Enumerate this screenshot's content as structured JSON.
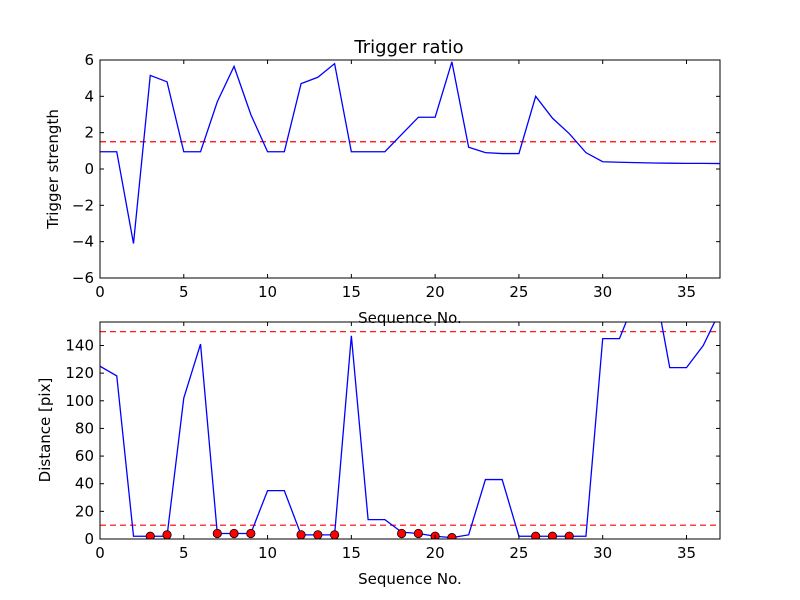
{
  "chart_data": [
    {
      "type": "line",
      "title": "Trigger ratio",
      "xlabel": "Sequence No.",
      "ylabel": "Trigger strength",
      "xlim": [
        0,
        37
      ],
      "ylim": [
        -6,
        6
      ],
      "xticks": [
        "0",
        "5",
        "10",
        "15",
        "20",
        "25",
        "30",
        "35"
      ],
      "yticks": [
        "−6",
        "−4",
        "−2",
        "0",
        "2",
        "4",
        "6"
      ],
      "grid": false,
      "series": [
        {
          "color": "#0000ff",
          "style": "solid",
          "x": [
            0,
            1,
            2,
            3,
            4,
            5,
            6,
            7,
            8,
            9,
            10,
            11,
            12,
            13,
            14,
            15,
            16,
            17,
            18,
            19,
            20,
            21,
            22,
            23,
            24,
            25,
            26,
            27,
            28,
            29,
            30,
            31,
            32,
            33,
            34,
            35,
            36,
            37
          ],
          "y": [
            0.95,
            0.95,
            -4.1,
            5.15,
            4.8,
            0.95,
            0.95,
            3.7,
            5.65,
            3.0,
            0.95,
            0.95,
            4.7,
            5.05,
            5.8,
            0.95,
            0.95,
            0.95,
            1.9,
            2.85,
            2.85,
            5.9,
            1.2,
            0.9,
            0.85,
            0.85,
            4.0,
            2.8,
            1.95,
            0.9,
            0.4,
            0.37,
            0.35,
            0.33,
            0.32,
            0.31,
            0.31,
            0.3
          ]
        }
      ],
      "hlines": [
        {
          "y": 1.5,
          "color": "#ff0000",
          "style": "dashed"
        }
      ]
    },
    {
      "type": "line",
      "title": "",
      "xlabel": "Sequence No.",
      "ylabel": "Distance [pix]",
      "xlim": [
        0,
        37
      ],
      "ylim": [
        0,
        157
      ],
      "xticks": [
        "0",
        "5",
        "10",
        "15",
        "20",
        "25",
        "30",
        "35"
      ],
      "yticks": [
        "0",
        "20",
        "40",
        "60",
        "80",
        "100",
        "120",
        "140"
      ],
      "grid": false,
      "series": [
        {
          "color": "#0000ff",
          "style": "solid",
          "x": [
            0,
            1,
            2,
            3,
            4,
            5,
            6,
            7,
            8,
            9,
            10,
            11,
            12,
            13,
            14,
            15,
            16,
            17,
            18,
            19,
            20,
            21,
            22,
            23,
            24,
            25,
            26,
            27,
            28,
            29,
            30,
            31,
            32,
            33,
            34,
            35,
            36,
            37
          ],
          "y": [
            125,
            118,
            2,
            2,
            2,
            102,
            141,
            4,
            4,
            4,
            35,
            35,
            3,
            3,
            3,
            147,
            14,
            14,
            5,
            4,
            2,
            1,
            3,
            43,
            43,
            2,
            2,
            2,
            2,
            2,
            145,
            145,
            175,
            190,
            124,
            124,
            140,
            165
          ]
        },
        {
          "color": "#ff0000",
          "style": "markers",
          "x": [
            3,
            4,
            7,
            8,
            9,
            12,
            13,
            14,
            18,
            19,
            20,
            21,
            26,
            27,
            28
          ],
          "y": [
            2,
            3,
            4,
            4,
            4,
            3,
            3,
            3,
            4,
            4,
            2,
            1,
            2,
            2,
            2
          ]
        }
      ],
      "hlines": [
        {
          "y": 150,
          "color": "#ff0000",
          "style": "dashed"
        },
        {
          "y": 10,
          "color": "#ff0000",
          "style": "dashed"
        }
      ]
    }
  ]
}
